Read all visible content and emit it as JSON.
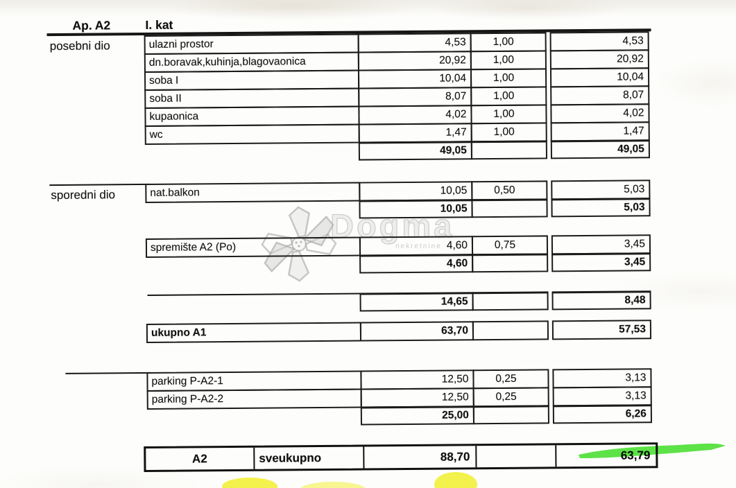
{
  "header": {
    "apartment_label": "Ap. A2",
    "floor_label": "I. kat"
  },
  "watermark": {
    "brand": "Dogma",
    "sub": "nekretnine"
  },
  "sections": [
    {
      "label": "posebni dio",
      "rows": [
        {
          "name": "ulazni prostor",
          "area": "4,53",
          "coef": "1,00",
          "result": "4,53"
        },
        {
          "name": "dn.boravak,kuhinja,blagovaonica",
          "area": "20,92",
          "coef": "1,00",
          "result": "20,92"
        },
        {
          "name": "soba I",
          "area": "10,04",
          "coef": "1,00",
          "result": "10,04"
        },
        {
          "name": "soba II",
          "area": "8,07",
          "coef": "1,00",
          "result": "8,07"
        },
        {
          "name": "kupaonica",
          "area": "4,02",
          "coef": "1,00",
          "result": "4,02"
        },
        {
          "name": "wc",
          "area": "1,47",
          "coef": "1,00",
          "result": "1,47"
        }
      ],
      "subtotal": {
        "area": "49,05",
        "result": "49,05"
      }
    },
    {
      "label": "sporedni dio",
      "rows": [
        {
          "name": "nat.balkon",
          "area": "10,05",
          "coef": "0,50",
          "result": "5,03"
        }
      ],
      "subtotal": {
        "area": "10,05",
        "result": "5,03"
      }
    },
    {
      "label": "",
      "rows": [
        {
          "name": "spremište A2 (Po)",
          "area": "4,60",
          "coef": "0,75",
          "result": "3,45"
        }
      ],
      "subtotal": {
        "area": "4,60",
        "result": "3,45"
      }
    }
  ],
  "secondary_total": {
    "area": "14,65",
    "result": "8,48"
  },
  "total_a1": {
    "label": "ukupno A1",
    "area": "63,70",
    "result": "57,53"
  },
  "parking": {
    "label": "",
    "rows": [
      {
        "name": "parking P-A2-1",
        "area": "12,50",
        "coef": "0,25",
        "result": "3,13"
      },
      {
        "name": "parking P-A2-2",
        "area": "12,50",
        "coef": "0,25",
        "result": "3,13"
      }
    ],
    "subtotal": {
      "area": "25,00",
      "result": "6,26"
    }
  },
  "grand_total": {
    "code": "A2",
    "label": "sveukupno",
    "area": "88,70",
    "result": "63,79"
  },
  "highlights": {
    "green": "#42df28",
    "yellow": "#f4f238"
  }
}
